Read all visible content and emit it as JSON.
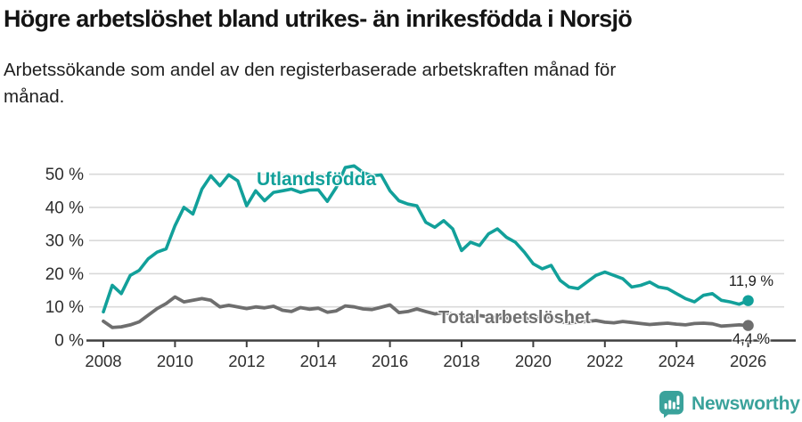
{
  "header": {
    "title": "Högre arbetslöshet bland utrikes- än inrikesfödda i Norsjö",
    "subtitle": "Arbetssökande som andel av den registerbaserade arbetskraften månad för månad."
  },
  "colors": {
    "foreign_series": "#12a09a",
    "total_series": "#6e6e6e",
    "gridline": "#d9d9d9",
    "axis": "#3f3f3f",
    "tick_label": "#2e2e2e",
    "logo_teal": "#3aa29b"
  },
  "chart_data": {
    "type": "line",
    "title": "Högre arbetslöshet bland utrikes- än inrikesfödda i Norsjö",
    "subtitle": "Arbetssökande som andel av den registerbaserade arbetskraften månad för månad.",
    "unit": "%",
    "grid": "horizontal",
    "legend_position": "inline-labels",
    "x_axis": {
      "ticks": [
        2008,
        2010,
        2012,
        2014,
        2016,
        2018,
        2020,
        2022,
        2024,
        2026
      ],
      "range": [
        2007.8,
        2026.6
      ]
    },
    "y_axis": {
      "ticks": [
        0,
        10,
        20,
        30,
        40,
        50
      ],
      "tick_labels": [
        "0 %",
        "10 %",
        "20 %",
        "30 %",
        "40 %",
        "50 %"
      ],
      "range": [
        0,
        54
      ]
    },
    "series": [
      {
        "name": "Utlandsfödda",
        "color": "#12a09a",
        "end_label": "11,9 %",
        "end_value": 11.9,
        "x_start": 2008.0,
        "x_step": 0.25,
        "values": [
          8.5,
          16.5,
          14.0,
          19.5,
          21.0,
          24.5,
          26.5,
          27.5,
          34.5,
          40.0,
          38.0,
          45.5,
          49.5,
          46.5,
          49.8,
          48.0,
          40.5,
          45.0,
          42.0,
          44.5,
          45.0,
          45.5,
          44.5,
          45.2,
          45.3,
          41.8,
          46.0,
          52.0,
          52.5,
          50.5,
          49.5,
          49.8,
          45.0,
          42.0,
          41.0,
          40.5,
          35.5,
          34.0,
          36.0,
          33.5,
          27.0,
          29.5,
          28.5,
          32.0,
          33.5,
          31.0,
          29.5,
          26.5,
          23.0,
          21.5,
          22.5,
          18.0,
          16.0,
          15.5,
          17.5,
          19.5,
          20.5,
          19.5,
          18.5,
          16.0,
          16.5,
          17.5,
          16.0,
          15.5,
          14.0,
          12.5,
          11.5,
          13.5,
          14.0,
          12.0,
          11.5,
          10.8,
          11.9
        ]
      },
      {
        "name": "Total arbetslöshet",
        "color": "#6e6e6e",
        "end_label": "4,4 %",
        "end_value": 4.4,
        "x_start": 2008.0,
        "x_step": 0.25,
        "values": [
          5.7,
          3.8,
          4.0,
          4.6,
          5.5,
          7.5,
          9.5,
          11.0,
          13.0,
          11.5,
          12.0,
          12.5,
          12.0,
          10.0,
          10.5,
          10.0,
          9.5,
          10.0,
          9.7,
          10.2,
          9.0,
          8.6,
          9.8,
          9.3,
          9.6,
          8.4,
          8.8,
          10.3,
          10.0,
          9.4,
          9.2,
          9.9,
          10.6,
          8.3,
          8.6,
          9.4,
          8.6,
          7.9,
          8.3,
          7.8,
          7.3,
          7.0,
          7.4,
          7.0,
          6.8,
          6.5,
          6.8,
          6.4,
          6.6,
          7.2,
          6.8,
          5.5,
          5.2,
          5.4,
          5.6,
          5.9,
          5.4,
          5.2,
          5.6,
          5.3,
          5.0,
          4.7,
          4.9,
          5.1,
          4.8,
          4.6,
          5.0,
          5.1,
          4.9,
          4.2,
          4.4,
          4.6,
          4.4
        ]
      }
    ]
  },
  "footer": {
    "brand": "Newsworthy"
  }
}
